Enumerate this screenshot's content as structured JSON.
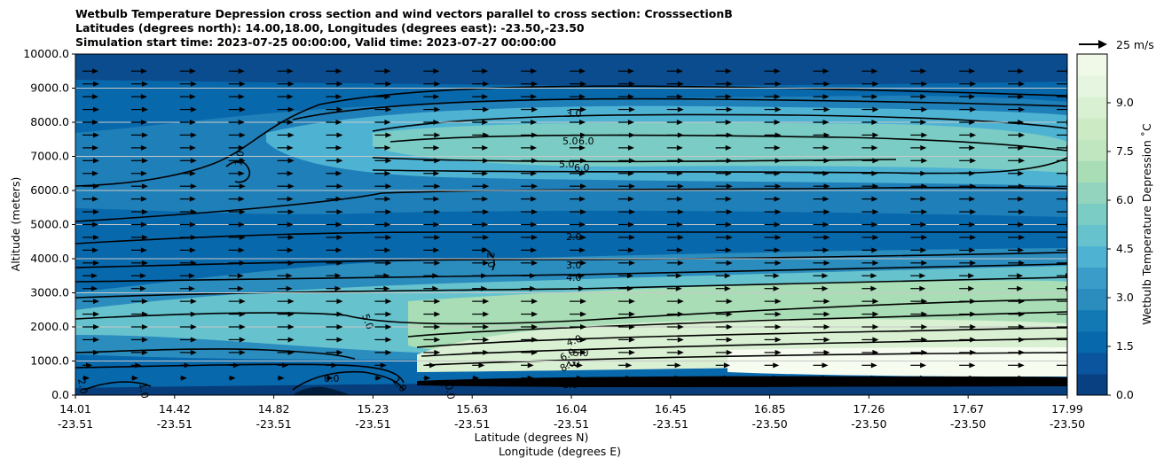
{
  "chart_data": {
    "type": "contour",
    "title_lines": [
      "Wetbulb Temperature Depression cross section and wind vectors parallel to cross section: CrosssectionB",
      "Latitudes (degrees north): 14.00,18.00, Longitudes (degrees east): -23.50,-23.50",
      "Simulation start time: 2023-07-25 00:00:00, Valid time: 2023-07-27 00:00:00"
    ],
    "xlabel_line1": "Latitude (degrees N)",
    "xlabel_line2": "Longitude (degrees E)",
    "ylabel": "Altitude (meters)",
    "ylim": [
      0,
      10000
    ],
    "yticks": [
      "0.0",
      "1000.0",
      "2000.0",
      "3000.0",
      "4000.0",
      "5000.0",
      "6000.0",
      "7000.0",
      "8000.0",
      "9000.0",
      "10000.0"
    ],
    "xticks": [
      {
        "lat": "14.01",
        "lon": "-23.51"
      },
      {
        "lat": "14.42",
        "lon": "-23.51"
      },
      {
        "lat": "14.82",
        "lon": "-23.51"
      },
      {
        "lat": "15.23",
        "lon": "-23.51"
      },
      {
        "lat": "15.63",
        "lon": "-23.51"
      },
      {
        "lat": "16.04",
        "lon": "-23.51"
      },
      {
        "lat": "16.45",
        "lon": "-23.51"
      },
      {
        "lat": "16.85",
        "lon": "-23.50"
      },
      {
        "lat": "17.26",
        "lon": "-23.50"
      },
      {
        "lat": "17.67",
        "lon": "-23.50"
      },
      {
        "lat": "17.99",
        "lon": "-23.50"
      }
    ],
    "colorbar": {
      "label": "Wetbulb Temperature Depression ˚C",
      "range": [
        0,
        10.5
      ],
      "ticks": [
        "0.0",
        "1.5",
        "3.0",
        "4.5",
        "6.0",
        "7.5",
        "9.0"
      ],
      "colors": [
        "#084081",
        "#0a559e",
        "#0868ac",
        "#1279b5",
        "#2b8cbe",
        "#3a9cc9",
        "#4eb3d3",
        "#66c2cd",
        "#7bccc4",
        "#93d4be",
        "#a8ddb5",
        "#bfe6bf",
        "#ccebc5",
        "#d9f0d3",
        "#e5f5df",
        "#f0f9e8"
      ]
    },
    "quiver_key": "25 m/s",
    "contour_labels": [
      "3.0",
      "5.0",
      "6.0",
      "5.0",
      "6.0",
      "1.0",
      "2.0",
      "2.0",
      "3.0",
      "4.0",
      "5.0",
      "4.0",
      "5.0",
      "6.0",
      "7.0",
      "8.0",
      "1.0",
      "0.0",
      "1.0",
      "0.0",
      "1.0",
      "2.0"
    ]
  }
}
